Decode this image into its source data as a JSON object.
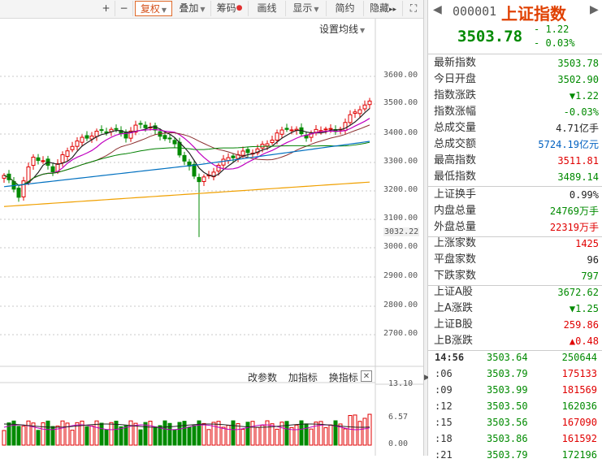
{
  "toolbar": {
    "items": [
      "+",
      "−",
      "复权",
      "叠加",
      "筹码",
      "画线",
      "显示",
      "简约",
      "隐藏"
    ],
    "next": "▸▸",
    "expand": "⛶"
  },
  "chart": {
    "settings_label": "设置均线",
    "price_axis": [
      "3600.00",
      "3500.00",
      "3400.00",
      "3300.00",
      "3200.00",
      "3100.00",
      "3032.22",
      "3000.00",
      "2900.00",
      "2800.00",
      "2700.00"
    ],
    "volume_axis": [
      "13.10",
      "6.57",
      "0.00"
    ],
    "indicator_buttons": [
      "改参数",
      "加指标",
      "换指标"
    ],
    "close_label": "✕",
    "colors": {
      "up": "#e00000",
      "down": "#008a00",
      "ma_black": "#222222",
      "ma_purple": "#c000c0",
      "ma_green": "#008000",
      "ma_blue": "#0070c0",
      "ma_orange": "#f0a000"
    }
  },
  "panel": {
    "code": "000001",
    "name": "上证指数",
    "price": "3503.78",
    "change": "- 1.22",
    "change_pct": "- 0.03%",
    "stats1": [
      {
        "k": "最新指数",
        "v": "3503.78",
        "c": "green"
      },
      {
        "k": "今日开盘",
        "v": "3502.90",
        "c": "green"
      },
      {
        "k": "指数涨跌",
        "v": "▼1.22",
        "c": "green"
      },
      {
        "k": "指数涨幅",
        "v": "-0.03%",
        "c": "green"
      },
      {
        "k": "总成交量",
        "v": "4.71亿手",
        "c": "black"
      },
      {
        "k": "总成交额",
        "v": "5724.19亿元",
        "c": "blue"
      },
      {
        "k": "最高指数",
        "v": "3511.81",
        "c": "red"
      },
      {
        "k": "最低指数",
        "v": "3489.14",
        "c": "green"
      }
    ],
    "stats2": [
      {
        "k": "上证换手",
        "v": "0.99%",
        "c": "black"
      },
      {
        "k": "内盘总量",
        "v": "24769万手",
        "c": "green"
      },
      {
        "k": "外盘总量",
        "v": "22319万手",
        "c": "red"
      }
    ],
    "stats3": [
      {
        "k": "上涨家数",
        "v": "1425",
        "c": "red"
      },
      {
        "k": "平盘家数",
        "v": "96",
        "c": "black"
      },
      {
        "k": "下跌家数",
        "v": "797",
        "c": "green"
      }
    ],
    "stats4": [
      {
        "k": "上证A股",
        "v": "3672.62",
        "c": "green"
      },
      {
        "k": "上A涨跌",
        "v": "▼1.25",
        "c": "green"
      },
      {
        "k": "上证B股",
        "v": "259.86",
        "c": "red"
      },
      {
        "k": "上B涨跌",
        "v": "▲0.48",
        "c": "red"
      }
    ],
    "ticks": [
      {
        "t": "14:56",
        "p": "3503.64",
        "v": "250644",
        "vc": "green"
      },
      {
        "t": ":06",
        "p": "3503.79",
        "v": "175133",
        "vc": "red"
      },
      {
        "t": ":09",
        "p": "3503.99",
        "v": "181569",
        "vc": "red"
      },
      {
        "t": ":12",
        "p": "3503.50",
        "v": "162036",
        "vc": "green"
      },
      {
        "t": ":15",
        "p": "3503.56",
        "v": "167090",
        "vc": "red"
      },
      {
        "t": ":18",
        "p": "3503.86",
        "v": "161592",
        "vc": "red"
      },
      {
        "t": ":21",
        "p": "3503.79",
        "v": "172196",
        "vc": "green"
      }
    ]
  }
}
